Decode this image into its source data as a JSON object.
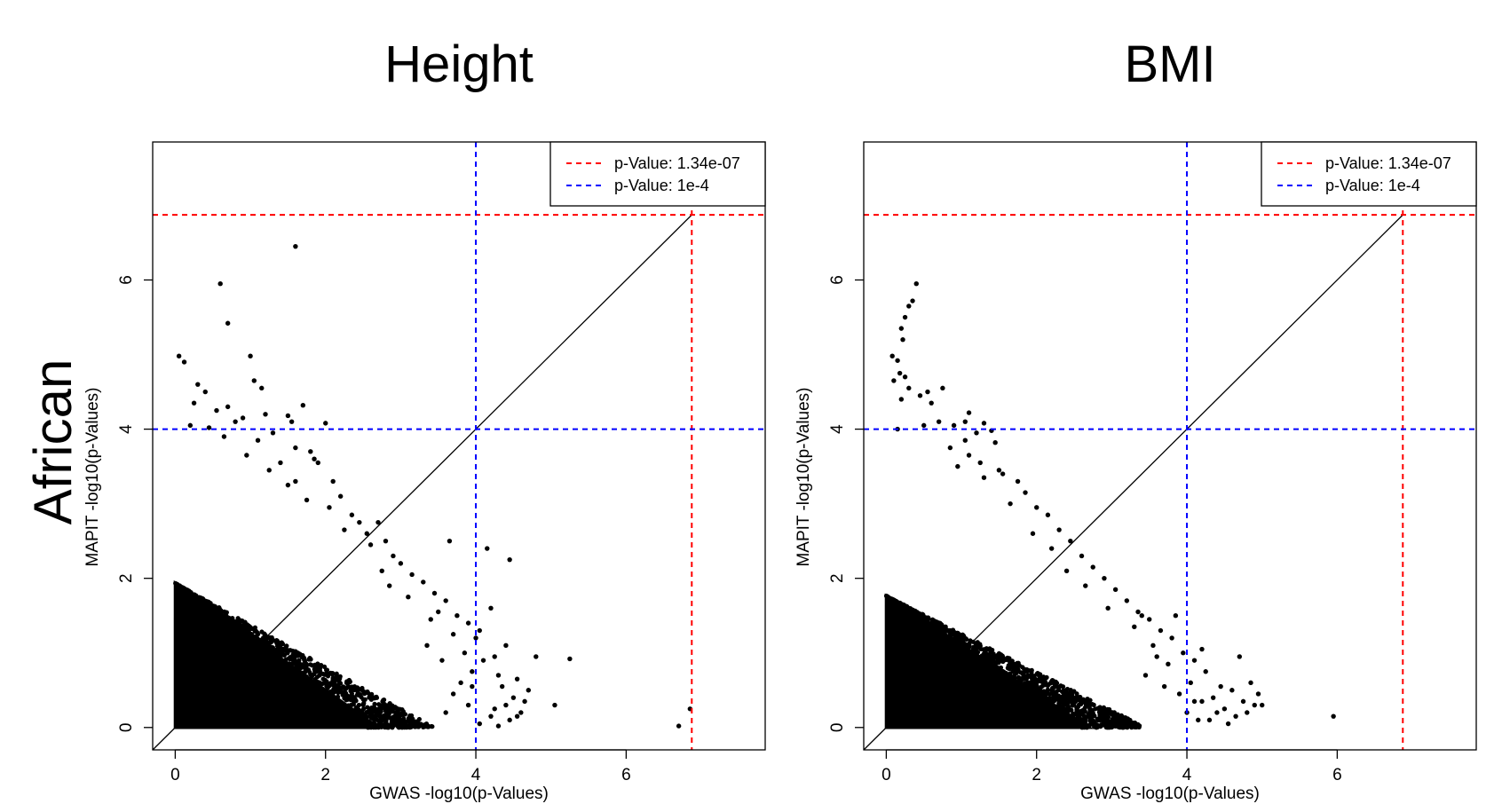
{
  "row_label": "African",
  "colors": {
    "threshold_bonferroni": "#ff0000",
    "threshold_suggestive": "#0000ff",
    "points": "#000000",
    "identity_line": "#000000"
  },
  "chart_data": [
    {
      "type": "scatter",
      "title": "Height",
      "xlabel": "GWAS -log10(p-Values)",
      "ylabel": "MAPIT -log10(p-Values)",
      "xlim": [
        -0.3,
        7.85
      ],
      "ylim": [
        -0.3,
        7.85
      ],
      "xticks": [
        "0",
        "2",
        "4",
        "6"
      ],
      "yticks": [
        "0",
        "2",
        "4",
        "6"
      ],
      "grid": false,
      "legend_position": "top-right",
      "identity_line": true,
      "thresholds": [
        {
          "label": "p-Value: 1.34e-07",
          "value": 6.873,
          "color": "#ff0000"
        },
        {
          "label": "p-Value: 1e-4",
          "value": 4.0,
          "color": "#0000ff"
        }
      ],
      "dense_region_note": "tens of thousands of overlapping points below the line x + 1.55*y = 3.0",
      "points": [
        [
          1.6,
          6.45
        ],
        [
          0.6,
          5.95
        ],
        [
          0.7,
          5.42
        ],
        [
          1.0,
          4.98
        ],
        [
          0.05,
          4.98
        ],
        [
          0.12,
          4.9
        ],
        [
          1.05,
          4.65
        ],
        [
          0.3,
          4.6
        ],
        [
          1.15,
          4.55
        ],
        [
          0.4,
          4.5
        ],
        [
          0.25,
          4.35
        ],
        [
          0.7,
          4.3
        ],
        [
          1.7,
          4.32
        ],
        [
          0.55,
          4.25
        ],
        [
          1.2,
          4.2
        ],
        [
          0.9,
          4.15
        ],
        [
          1.5,
          4.18
        ],
        [
          0.8,
          4.1
        ],
        [
          1.55,
          4.1
        ],
        [
          2.0,
          4.08
        ],
        [
          0.2,
          4.05
        ],
        [
          0.45,
          4.02
        ],
        [
          1.3,
          3.95
        ],
        [
          0.65,
          3.9
        ],
        [
          1.1,
          3.85
        ],
        [
          1.6,
          3.75
        ],
        [
          1.8,
          3.7
        ],
        [
          1.85,
          3.6
        ],
        [
          0.95,
          3.65
        ],
        [
          1.4,
          3.55
        ],
        [
          1.9,
          3.55
        ],
        [
          1.25,
          3.45
        ],
        [
          2.1,
          3.3
        ],
        [
          1.5,
          3.25
        ],
        [
          1.6,
          3.3
        ],
        [
          2.2,
          3.1
        ],
        [
          1.75,
          3.05
        ],
        [
          2.05,
          2.95
        ],
        [
          2.35,
          2.85
        ],
        [
          2.45,
          2.75
        ],
        [
          2.7,
          2.75
        ],
        [
          2.55,
          2.6
        ],
        [
          2.25,
          2.65
        ],
        [
          2.8,
          2.5
        ],
        [
          2.6,
          2.45
        ],
        [
          2.9,
          2.3
        ],
        [
          3.0,
          2.2
        ],
        [
          2.75,
          2.1
        ],
        [
          3.15,
          2.05
        ],
        [
          3.3,
          1.95
        ],
        [
          2.85,
          1.9
        ],
        [
          3.45,
          1.8
        ],
        [
          3.6,
          1.7
        ],
        [
          3.1,
          1.75
        ],
        [
          3.5,
          1.55
        ],
        [
          3.75,
          1.5
        ],
        [
          3.9,
          1.4
        ],
        [
          3.4,
          1.45
        ],
        [
          4.05,
          1.3
        ],
        [
          3.7,
          1.25
        ],
        [
          4.2,
          1.6
        ],
        [
          4.4,
          1.1
        ],
        [
          3.65,
          2.5
        ],
        [
          4.15,
          2.4
        ],
        [
          4.45,
          2.25
        ],
        [
          4.0,
          1.2
        ],
        [
          3.85,
          1.0
        ],
        [
          4.1,
          0.9
        ],
        [
          4.25,
          0.95
        ],
        [
          3.95,
          0.75
        ],
        [
          4.3,
          0.7
        ],
        [
          4.55,
          0.65
        ],
        [
          4.7,
          0.5
        ],
        [
          4.5,
          0.4
        ],
        [
          4.35,
          0.55
        ],
        [
          4.8,
          0.95
        ],
        [
          5.05,
          0.3
        ],
        [
          5.25,
          0.92
        ],
        [
          4.6,
          0.2
        ],
        [
          4.45,
          0.1
        ],
        [
          4.2,
          0.15
        ],
        [
          3.9,
          0.3
        ],
        [
          4.05,
          0.05
        ],
        [
          4.4,
          0.3
        ],
        [
          3.7,
          0.45
        ],
        [
          3.8,
          0.6
        ],
        [
          4.65,
          0.35
        ],
        [
          4.25,
          0.25
        ],
        [
          6.85,
          0.25
        ],
        [
          6.7,
          0.02
        ],
        [
          3.55,
          0.9
        ],
        [
          3.35,
          1.1
        ],
        [
          3.6,
          0.2
        ],
        [
          4.3,
          0.02
        ],
        [
          3.95,
          0.55
        ],
        [
          4.55,
          0.15
        ]
      ]
    },
    {
      "type": "scatter",
      "title": "BMI",
      "xlabel": "GWAS -log10(p-Values)",
      "ylabel": "MAPIT -log10(p-Values)",
      "xlim": [
        -0.3,
        7.85
      ],
      "ylim": [
        -0.3,
        7.85
      ],
      "xticks": [
        "0",
        "2",
        "4",
        "6"
      ],
      "yticks": [
        "0",
        "2",
        "4",
        "6"
      ],
      "grid": false,
      "legend_position": "top-right",
      "identity_line": true,
      "thresholds": [
        {
          "label": "p-Value: 1.34e-07",
          "value": 6.873,
          "color": "#ff0000"
        },
        {
          "label": "p-Value: 1e-4",
          "value": 4.0,
          "color": "#0000ff"
        }
      ],
      "dense_region_note": "tens of thousands of overlapping points below the line x + 1.7*y = 3.0",
      "points": [
        [
          0.4,
          5.95
        ],
        [
          0.35,
          5.72
        ],
        [
          0.3,
          5.65
        ],
        [
          0.25,
          5.5
        ],
        [
          0.2,
          5.35
        ],
        [
          0.22,
          5.2
        ],
        [
          0.08,
          4.98
        ],
        [
          0.15,
          4.92
        ],
        [
          0.18,
          4.75
        ],
        [
          0.1,
          4.65
        ],
        [
          0.25,
          4.7
        ],
        [
          0.3,
          4.55
        ],
        [
          0.75,
          4.55
        ],
        [
          0.55,
          4.5
        ],
        [
          0.45,
          4.45
        ],
        [
          0.2,
          4.4
        ],
        [
          0.6,
          4.35
        ],
        [
          1.1,
          4.22
        ],
        [
          1.05,
          4.1
        ],
        [
          0.7,
          4.1
        ],
        [
          0.9,
          4.05
        ],
        [
          1.3,
          4.08
        ],
        [
          0.5,
          4.05
        ],
        [
          0.15,
          4.0
        ],
        [
          1.2,
          3.95
        ],
        [
          1.4,
          3.98
        ],
        [
          1.05,
          3.85
        ],
        [
          1.45,
          3.82
        ],
        [
          0.85,
          3.75
        ],
        [
          1.1,
          3.65
        ],
        [
          1.25,
          3.55
        ],
        [
          0.95,
          3.5
        ],
        [
          1.5,
          3.45
        ],
        [
          1.55,
          3.4
        ],
        [
          1.3,
          3.35
        ],
        [
          1.75,
          3.3
        ],
        [
          1.85,
          3.15
        ],
        [
          1.65,
          3.0
        ],
        [
          2.0,
          2.95
        ],
        [
          2.15,
          2.85
        ],
        [
          2.3,
          2.65
        ],
        [
          1.95,
          2.6
        ],
        [
          2.45,
          2.5
        ],
        [
          2.2,
          2.4
        ],
        [
          2.6,
          2.3
        ],
        [
          2.75,
          2.15
        ],
        [
          2.4,
          2.1
        ],
        [
          2.9,
          2.0
        ],
        [
          3.05,
          1.85
        ],
        [
          2.65,
          1.9
        ],
        [
          3.2,
          1.7
        ],
        [
          3.35,
          1.55
        ],
        [
          2.95,
          1.6
        ],
        [
          3.5,
          1.45
        ],
        [
          3.65,
          1.3
        ],
        [
          3.3,
          1.35
        ],
        [
          3.8,
          1.2
        ],
        [
          3.55,
          1.1
        ],
        [
          3.85,
          1.5
        ],
        [
          3.4,
          1.5
        ],
        [
          3.95,
          1.0
        ],
        [
          4.1,
          0.9
        ],
        [
          3.75,
          0.85
        ],
        [
          4.25,
          0.75
        ],
        [
          4.05,
          0.6
        ],
        [
          4.45,
          0.55
        ],
        [
          4.6,
          0.5
        ],
        [
          4.35,
          0.4
        ],
        [
          4.75,
          0.35
        ],
        [
          4.9,
          0.3
        ],
        [
          4.5,
          0.25
        ],
        [
          4.95,
          0.45
        ],
        [
          5.0,
          0.3
        ],
        [
          4.8,
          0.2
        ],
        [
          4.2,
          0.35
        ],
        [
          4.65,
          0.15
        ],
        [
          4.3,
          0.1
        ],
        [
          4.55,
          0.05
        ],
        [
          4.0,
          0.2
        ],
        [
          3.9,
          0.45
        ],
        [
          4.15,
          0.1
        ],
        [
          4.4,
          0.2
        ],
        [
          4.7,
          0.95
        ],
        [
          4.85,
          0.6
        ],
        [
          4.2,
          1.05
        ],
        [
          3.6,
          0.95
        ],
        [
          3.45,
          0.7
        ],
        [
          5.95,
          0.15
        ],
        [
          4.1,
          0.35
        ],
        [
          3.7,
          0.55
        ]
      ]
    }
  ]
}
